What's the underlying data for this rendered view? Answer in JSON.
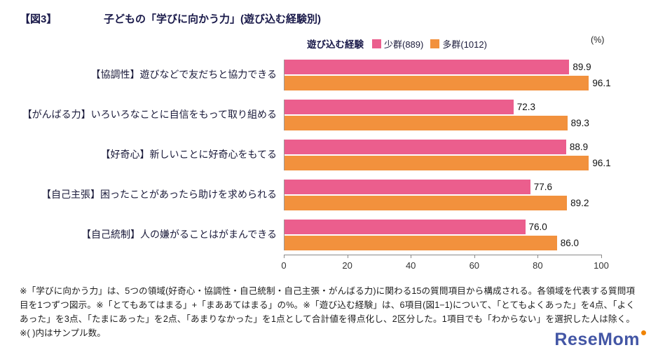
{
  "figure_label": "【図3】",
  "title": "子どもの「学びに向かう力」(遊び込む経験別)",
  "unit_label": "(%)",
  "legend": {
    "title": "遊び込む経験",
    "series": [
      {
        "name": "少群(889)",
        "color": "#eb5e8d"
      },
      {
        "name": "多群(1012)",
        "color": "#f2913d"
      }
    ]
  },
  "chart_data": {
    "type": "bar",
    "orientation": "horizontal",
    "title": "子どもの「学びに向かう力」(遊び込む経験別)",
    "xlabel": "(%)",
    "ylabel": "",
    "xlim": [
      0,
      100
    ],
    "ticks": [
      0,
      20,
      40,
      60,
      80,
      100
    ],
    "grid": false,
    "legend_position": "top",
    "categories": [
      "【協調性】遊びなどで友だちと協力できる",
      "【がんばる力】いろいろなことに自信をもって取り組める",
      "【好奇心】新しいことに好奇心をもてる",
      "【自己主張】困ったことがあったら助けを求められる",
      "【自己統制】人の嫌がることはがまんできる"
    ],
    "series": [
      {
        "name": "少群(889)",
        "color": "#eb5e8d",
        "values": [
          "89.9",
          "72.3",
          "88.9",
          "77.6",
          "76.0"
        ]
      },
      {
        "name": "多群(1012)",
        "color": "#f2913d",
        "values": [
          "96.1",
          "89.3",
          "96.1",
          "89.2",
          "86.0"
        ]
      }
    ]
  },
  "footnote": "※「学びに向かう力」は、5つの領域(好奇心・協調性・自己統制・自己主張・がんばる力)に関わる15の質問項目から構成される。各領域を代表する質問項目を1つずつ図示。※「とてもあてはまる」+「まああてはまる」の%。※「遊び込む経験」は、6項目(図1−1)について、「とてもよくあった」を4点、「よくあった」を3点、「たまにあった」を2点、「あまりなかった」を1点として合計値を得点化し、2区分した。1項目でも「わからない」を選択した人は除く。※( )内はサンプル数。",
  "watermark": {
    "text": "ReseMom"
  }
}
